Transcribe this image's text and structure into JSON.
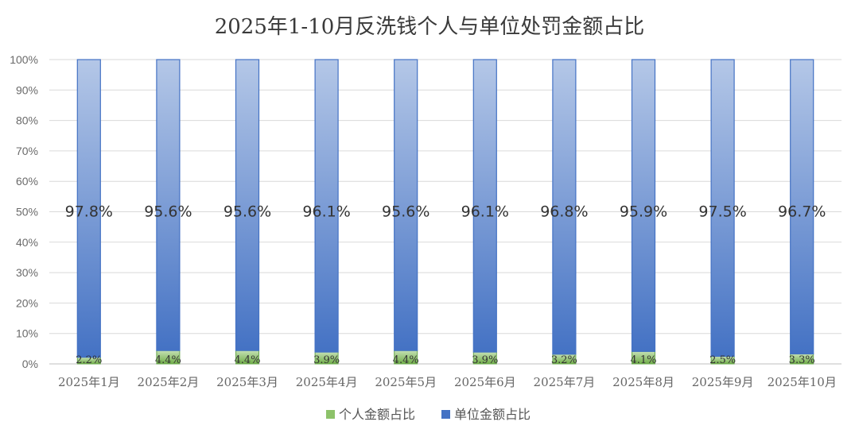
{
  "chart_data": {
    "type": "bar",
    "stacked": "percent",
    "title": "2025年1-10月反洗钱个人与单位处罚金额占比",
    "categories": [
      "2025年1月",
      "2025年2月",
      "2025年3月",
      "2025年4月",
      "2025年5月",
      "2025年6月",
      "2025年7月",
      "2025年8月",
      "2025年9月",
      "2025年10月"
    ],
    "series": [
      {
        "name": "个人金额占比",
        "values": [
          2.2,
          4.4,
          4.4,
          3.9,
          4.4,
          3.9,
          3.2,
          4.1,
          2.5,
          3.3
        ],
        "labels": [
          "2.2%",
          "4.4%",
          "4.4%",
          "3.9%",
          "4.4%",
          "3.9%",
          "3.2%",
          "4.1%",
          "2.5%",
          "3.3%"
        ],
        "color": "#8dc26a",
        "color_dark": "#6aa84f"
      },
      {
        "name": "单位金额占比",
        "values": [
          97.8,
          95.6,
          95.6,
          96.1,
          95.6,
          96.1,
          96.8,
          95.9,
          97.5,
          96.7
        ],
        "labels": [
          "97.8%",
          "95.6%",
          "95.6%",
          "96.1%",
          "95.6%",
          "96.1%",
          "96.8%",
          "95.9%",
          "97.5%",
          "96.7%"
        ],
        "color": "#4472c4",
        "color_light": "#b4c7e7"
      }
    ],
    "yticks": [
      "0%",
      "10%",
      "20%",
      "30%",
      "40%",
      "50%",
      "60%",
      "70%",
      "80%",
      "90%",
      "100%"
    ],
    "ylim": [
      0,
      100
    ],
    "grid": true,
    "legend_position": "bottom"
  }
}
